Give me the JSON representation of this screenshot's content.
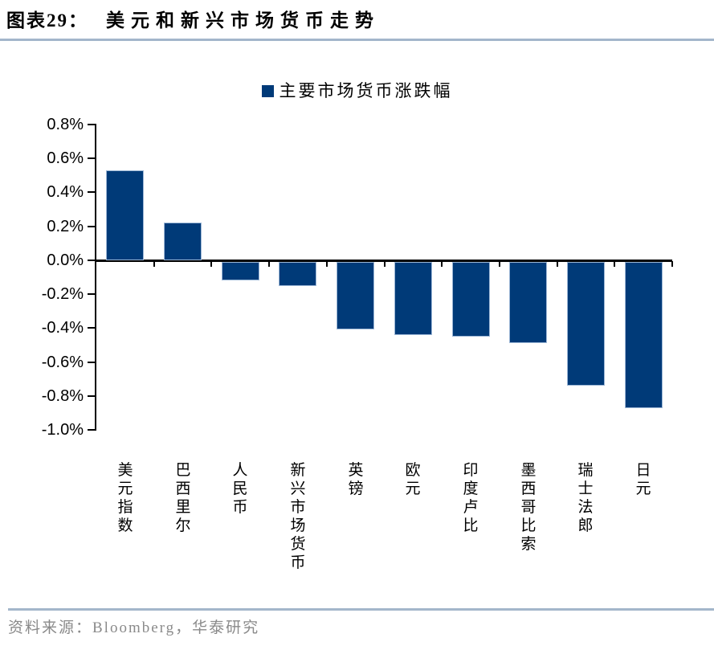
{
  "header": {
    "figure_label": "图表29：",
    "title": "美元和新兴市场货币走势"
  },
  "legend": {
    "label": "主要市场货币涨跌幅"
  },
  "footer": {
    "source": "资料来源：Bloomberg，华泰研究"
  },
  "colors": {
    "bar_fill": "#003a78",
    "bar_edge": "#9db7d6",
    "divider_line": "#a3b6cb",
    "axis": "#000000",
    "footer_text": "#8a8a8a",
    "text": "#000000"
  },
  "chart_data": {
    "type": "bar",
    "title": "美元和新兴市场货币走势",
    "legend_entries": [
      "主要市场货币涨跌幅"
    ],
    "legend_position": "top-center",
    "categories": [
      "美元指数",
      "巴西里尔",
      "人民币",
      "新兴市场货币",
      "英镑",
      "欧元",
      "印度卢比",
      "墨西哥比索",
      "瑞士法郎",
      "日元"
    ],
    "values": [
      0.53,
      0.22,
      -0.12,
      -0.15,
      -0.41,
      -0.44,
      -0.45,
      -0.49,
      -0.74,
      -0.87
    ],
    "unit": "%",
    "xlabel": "",
    "ylabel": "",
    "ylim": [
      -1.0,
      0.8
    ],
    "ytick_step": 0.2,
    "ytick_labels": [
      "0.8%",
      "0.6%",
      "0.4%",
      "0.2%",
      "0.0%",
      "-0.2%",
      "-0.4%",
      "-0.6%",
      "-0.8%",
      "-1.0%"
    ],
    "grid": false
  }
}
